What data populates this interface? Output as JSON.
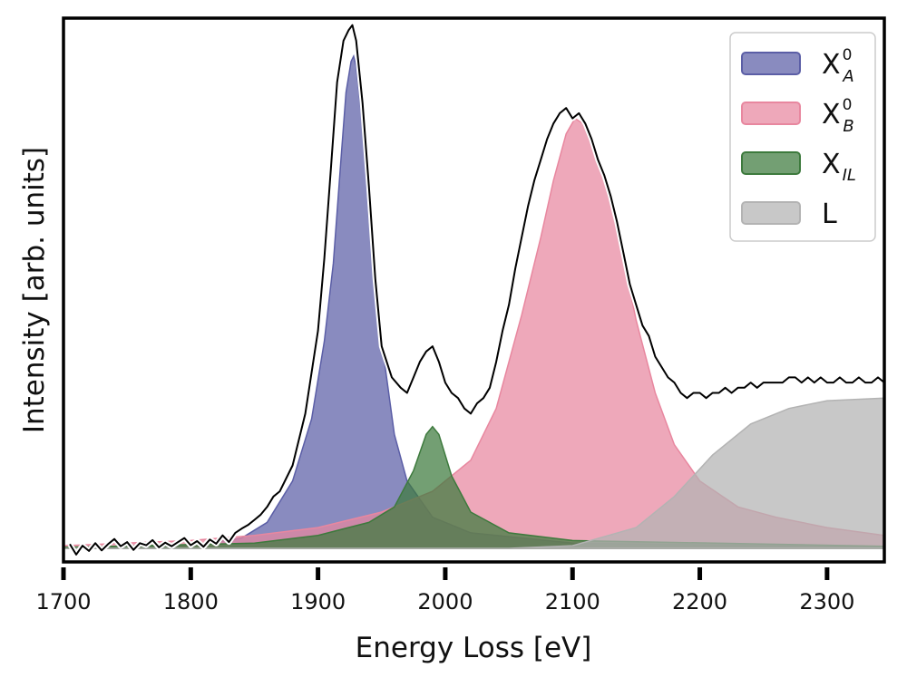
{
  "chart_data": {
    "type": "area",
    "title": "",
    "xlabel": "Energy Loss [eV]",
    "ylabel": "Intensity [arb. units]",
    "xlim": [
      1700,
      2345
    ],
    "ylim": [
      0,
      1.02
    ],
    "xticks": [
      1700,
      1800,
      1900,
      2000,
      2100,
      2200,
      2300
    ],
    "yticks": [],
    "grid": false,
    "legend_position": "top-right",
    "series": [
      {
        "name": "X_A^0",
        "legend": {
          "base": "X",
          "sub": "A",
          "sup": "0"
        },
        "kind": "filled_component",
        "color": "#5b5ea6",
        "points": [
          [
            1700,
            0
          ],
          [
            1800,
            0.005
          ],
          [
            1840,
            0.02
          ],
          [
            1860,
            0.05
          ],
          [
            1880,
            0.13
          ],
          [
            1895,
            0.25
          ],
          [
            1905,
            0.4
          ],
          [
            1912,
            0.55
          ],
          [
            1918,
            0.75
          ],
          [
            1922,
            0.88
          ],
          [
            1926,
            0.94
          ],
          [
            1928,
            0.95
          ],
          [
            1930,
            0.93
          ],
          [
            1935,
            0.82
          ],
          [
            1940,
            0.64
          ],
          [
            1950,
            0.4
          ],
          [
            1960,
            0.22
          ],
          [
            1970,
            0.13
          ],
          [
            1990,
            0.06
          ],
          [
            2020,
            0.03
          ],
          [
            2100,
            0.01
          ],
          [
            2345,
            0.003
          ]
        ]
      },
      {
        "name": "X_B^0",
        "legend": {
          "base": "X",
          "sub": "B",
          "sup": "0"
        },
        "kind": "filled_component",
        "color": "#e8879f",
        "points": [
          [
            1700,
            0.005
          ],
          [
            1800,
            0.015
          ],
          [
            1850,
            0.025
          ],
          [
            1900,
            0.04
          ],
          [
            1950,
            0.07
          ],
          [
            1990,
            0.11
          ],
          [
            2020,
            0.17
          ],
          [
            2040,
            0.27
          ],
          [
            2060,
            0.45
          ],
          [
            2075,
            0.6
          ],
          [
            2085,
            0.71
          ],
          [
            2095,
            0.8
          ],
          [
            2102,
            0.83
          ],
          [
            2108,
            0.82
          ],
          [
            2120,
            0.76
          ],
          [
            2135,
            0.62
          ],
          [
            2150,
            0.44
          ],
          [
            2165,
            0.3
          ],
          [
            2180,
            0.2
          ],
          [
            2200,
            0.13
          ],
          [
            2230,
            0.08
          ],
          [
            2260,
            0.06
          ],
          [
            2300,
            0.04
          ],
          [
            2345,
            0.025
          ]
        ]
      },
      {
        "name": "X_IL",
        "legend": {
          "base": "X",
          "sub": "IL",
          "sup": ""
        },
        "kind": "filled_component",
        "color": "#3d7a3d",
        "points": [
          [
            1700,
            0.002
          ],
          [
            1850,
            0.01
          ],
          [
            1900,
            0.025
          ],
          [
            1940,
            0.05
          ],
          [
            1960,
            0.08
          ],
          [
            1975,
            0.15
          ],
          [
            1985,
            0.22
          ],
          [
            1990,
            0.235
          ],
          [
            1995,
            0.22
          ],
          [
            2005,
            0.14
          ],
          [
            2020,
            0.07
          ],
          [
            2050,
            0.03
          ],
          [
            2100,
            0.015
          ],
          [
            2345,
            0.004
          ]
        ]
      },
      {
        "name": "L",
        "legend": {
          "base": "L",
          "sub": "",
          "sup": ""
        },
        "kind": "filled_component",
        "color": "#b3b3b3",
        "points": [
          [
            1700,
            0
          ],
          [
            2050,
            0
          ],
          [
            2100,
            0.005
          ],
          [
            2150,
            0.04
          ],
          [
            2180,
            0.1
          ],
          [
            2210,
            0.18
          ],
          [
            2240,
            0.24
          ],
          [
            2270,
            0.27
          ],
          [
            2300,
            0.285
          ],
          [
            2345,
            0.29
          ]
        ]
      },
      {
        "name": "data",
        "kind": "measured_line",
        "color": "#000000",
        "points": [
          [
            1705,
            0.008
          ],
          [
            1710,
            -0.012
          ],
          [
            1715,
            0.005
          ],
          [
            1720,
            -0.005
          ],
          [
            1725,
            0.01
          ],
          [
            1730,
            -0.004
          ],
          [
            1735,
            0.008
          ],
          [
            1740,
            0.018
          ],
          [
            1745,
            0.004
          ],
          [
            1750,
            0.012
          ],
          [
            1755,
            -0.003
          ],
          [
            1760,
            0.01
          ],
          [
            1765,
            0.006
          ],
          [
            1770,
            0.016
          ],
          [
            1775,
            0.002
          ],
          [
            1780,
            0.011
          ],
          [
            1785,
            0.004
          ],
          [
            1790,
            0.012
          ],
          [
            1795,
            0.02
          ],
          [
            1800,
            0.006
          ],
          [
            1805,
            0.014
          ],
          [
            1810,
            0.003
          ],
          [
            1815,
            0.017
          ],
          [
            1820,
            0.009
          ],
          [
            1825,
            0.025
          ],
          [
            1830,
            0.012
          ],
          [
            1835,
            0.03
          ],
          [
            1840,
            0.038
          ],
          [
            1845,
            0.045
          ],
          [
            1850,
            0.055
          ],
          [
            1855,
            0.065
          ],
          [
            1860,
            0.08
          ],
          [
            1865,
            0.1
          ],
          [
            1870,
            0.11
          ],
          [
            1880,
            0.16
          ],
          [
            1890,
            0.26
          ],
          [
            1900,
            0.42
          ],
          [
            1905,
            0.56
          ],
          [
            1910,
            0.73
          ],
          [
            1915,
            0.9
          ],
          [
            1920,
            0.98
          ],
          [
            1924,
            1.0
          ],
          [
            1927,
            1.01
          ],
          [
            1930,
            0.98
          ],
          [
            1935,
            0.86
          ],
          [
            1940,
            0.7
          ],
          [
            1945,
            0.52
          ],
          [
            1950,
            0.39
          ],
          [
            1958,
            0.33
          ],
          [
            1965,
            0.31
          ],
          [
            1970,
            0.3
          ],
          [
            1975,
            0.33
          ],
          [
            1980,
            0.36
          ],
          [
            1985,
            0.38
          ],
          [
            1990,
            0.39
          ],
          [
            1995,
            0.36
          ],
          [
            2000,
            0.32
          ],
          [
            2005,
            0.3
          ],
          [
            2010,
            0.29
          ],
          [
            2015,
            0.27
          ],
          [
            2020,
            0.26
          ],
          [
            2025,
            0.28
          ],
          [
            2030,
            0.29
          ],
          [
            2035,
            0.31
          ],
          [
            2040,
            0.36
          ],
          [
            2045,
            0.42
          ],
          [
            2050,
            0.47
          ],
          [
            2055,
            0.54
          ],
          [
            2060,
            0.6
          ],
          [
            2065,
            0.66
          ],
          [
            2070,
            0.71
          ],
          [
            2075,
            0.75
          ],
          [
            2080,
            0.79
          ],
          [
            2085,
            0.82
          ],
          [
            2090,
            0.84
          ],
          [
            2095,
            0.85
          ],
          [
            2100,
            0.83
          ],
          [
            2105,
            0.84
          ],
          [
            2110,
            0.82
          ],
          [
            2115,
            0.79
          ],
          [
            2120,
            0.75
          ],
          [
            2125,
            0.72
          ],
          [
            2130,
            0.68
          ],
          [
            2135,
            0.63
          ],
          [
            2140,
            0.57
          ],
          [
            2145,
            0.51
          ],
          [
            2150,
            0.47
          ],
          [
            2155,
            0.43
          ],
          [
            2160,
            0.41
          ],
          [
            2165,
            0.37
          ],
          [
            2170,
            0.35
          ],
          [
            2175,
            0.33
          ],
          [
            2180,
            0.32
          ],
          [
            2185,
            0.3
          ],
          [
            2190,
            0.29
          ],
          [
            2195,
            0.3
          ],
          [
            2200,
            0.3
          ],
          [
            2205,
            0.29
          ],
          [
            2210,
            0.3
          ],
          [
            2215,
            0.3
          ],
          [
            2220,
            0.31
          ],
          [
            2225,
            0.3
          ],
          [
            2230,
            0.31
          ],
          [
            2235,
            0.31
          ],
          [
            2240,
            0.32
          ],
          [
            2245,
            0.31
          ],
          [
            2250,
            0.32
          ],
          [
            2255,
            0.32
          ],
          [
            2260,
            0.32
          ],
          [
            2265,
            0.32
          ],
          [
            2270,
            0.33
          ],
          [
            2275,
            0.33
          ],
          [
            2280,
            0.32
          ],
          [
            2285,
            0.33
          ],
          [
            2290,
            0.32
          ],
          [
            2295,
            0.33
          ],
          [
            2300,
            0.32
          ],
          [
            2305,
            0.32
          ],
          [
            2310,
            0.33
          ],
          [
            2315,
            0.32
          ],
          [
            2320,
            0.32
          ],
          [
            2325,
            0.33
          ],
          [
            2330,
            0.32
          ],
          [
            2335,
            0.32
          ],
          [
            2340,
            0.33
          ],
          [
            2345,
            0.32
          ]
        ]
      }
    ]
  }
}
